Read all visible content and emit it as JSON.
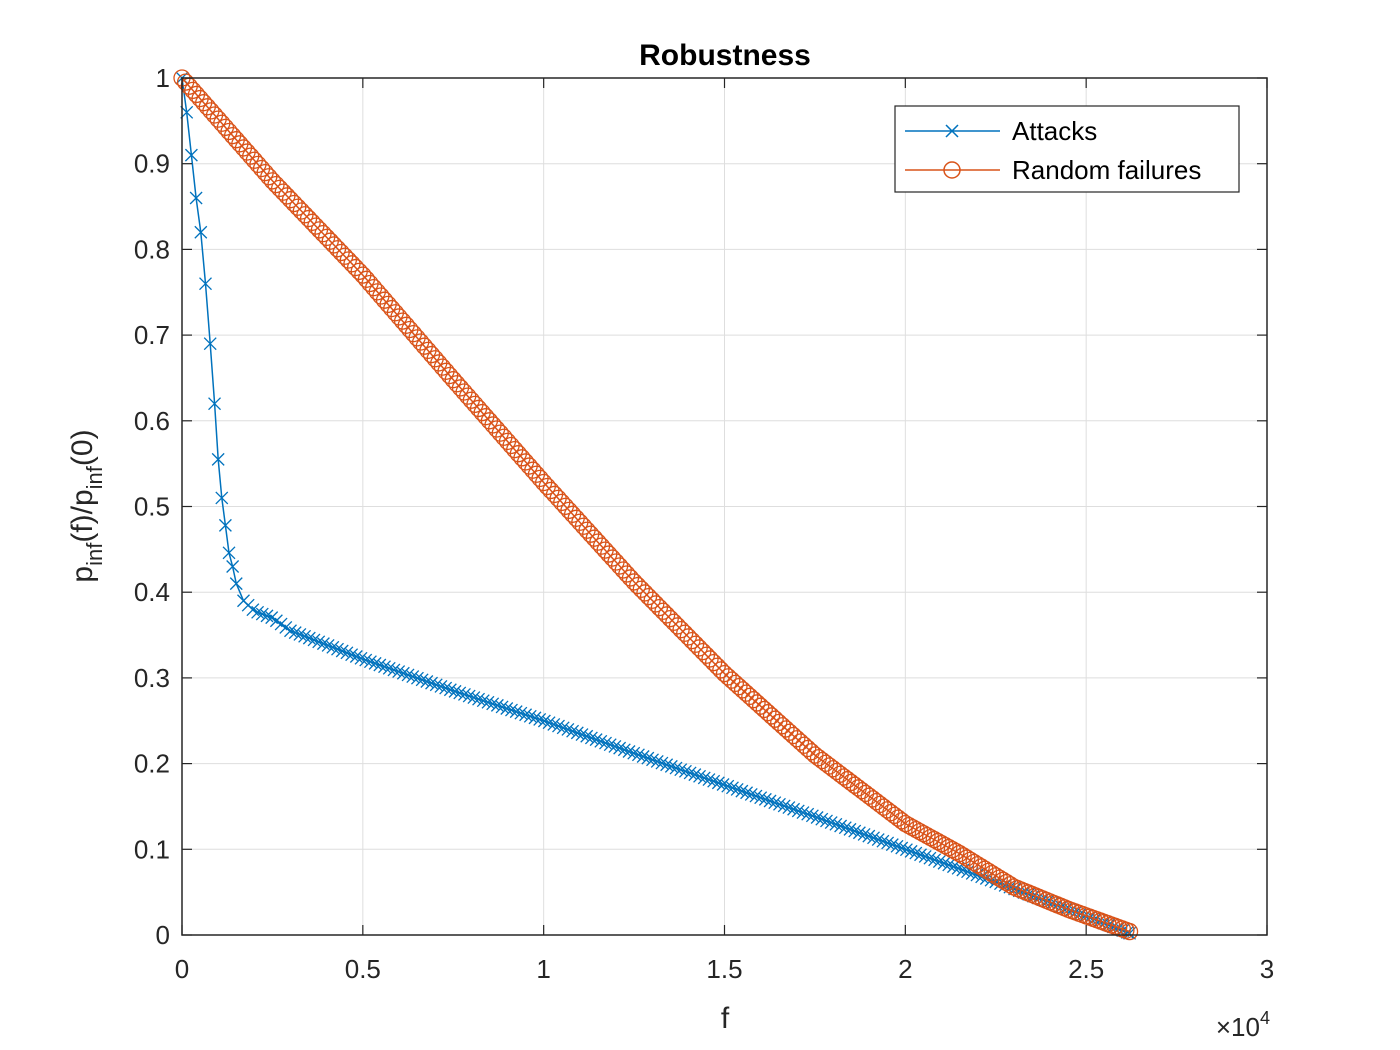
{
  "chart_data": {
    "type": "line",
    "title": "Robustness",
    "xlabel": "f",
    "ylabel": {
      "base": "p",
      "sub1": "inf",
      "mid": "(f)/p",
      "sub2": "inf",
      "tail": "(0)"
    },
    "x_exponent": {
      "prefix": "×10",
      "power": "4"
    },
    "xlim": [
      0,
      30000
    ],
    "ylim": [
      0,
      1
    ],
    "x_ticks": [
      0,
      5000,
      10000,
      15000,
      20000,
      25000,
      30000
    ],
    "x_tick_labels": [
      "0",
      "0.5",
      "1",
      "1.5",
      "2",
      "2.5",
      "3"
    ],
    "y_ticks": [
      0,
      0.1,
      0.2,
      0.3,
      0.4,
      0.5,
      0.6,
      0.7,
      0.8,
      0.9,
      1
    ],
    "y_tick_labels": [
      "0",
      "0.1",
      "0.2",
      "0.3",
      "0.4",
      "0.5",
      "0.6",
      "0.7",
      "0.8",
      "0.9",
      "1"
    ],
    "grid": true,
    "legend_position": "top-right",
    "series": [
      {
        "name": "Attacks",
        "color": "#0072BD",
        "marker": "x",
        "points": [
          [
            0,
            1.0
          ],
          [
            130,
            0.96
          ],
          [
            260,
            0.91
          ],
          [
            390,
            0.86
          ],
          [
            520,
            0.82
          ],
          [
            650,
            0.76
          ],
          [
            780,
            0.69
          ],
          [
            900,
            0.62
          ],
          [
            1000,
            0.555
          ],
          [
            1100,
            0.51
          ],
          [
            1200,
            0.478
          ],
          [
            1300,
            0.446
          ],
          [
            1400,
            0.43
          ],
          [
            1500,
            0.41
          ],
          [
            1700,
            0.39
          ],
          [
            2000,
            0.378
          ],
          [
            2500,
            0.37
          ],
          [
            3000,
            0.355
          ],
          [
            5000,
            0.322
          ],
          [
            7500,
            0.285
          ],
          [
            10000,
            0.25
          ],
          [
            12500,
            0.212
          ],
          [
            15000,
            0.175
          ],
          [
            17500,
            0.138
          ],
          [
            20000,
            0.1
          ],
          [
            22500,
            0.062
          ],
          [
            25000,
            0.022
          ],
          [
            26200,
            0.002
          ]
        ]
      },
      {
        "name": "Random failures",
        "color": "#D95319",
        "marker": "o",
        "points": [
          [
            0,
            1.0
          ],
          [
            2500,
            0.88
          ],
          [
            5000,
            0.77
          ],
          [
            7500,
            0.648
          ],
          [
            10000,
            0.528
          ],
          [
            12500,
            0.412
          ],
          [
            15000,
            0.305
          ],
          [
            17500,
            0.21
          ],
          [
            20000,
            0.13
          ],
          [
            21500,
            0.095
          ],
          [
            23000,
            0.056
          ],
          [
            24500,
            0.03
          ],
          [
            26200,
            0.004
          ]
        ]
      }
    ]
  }
}
